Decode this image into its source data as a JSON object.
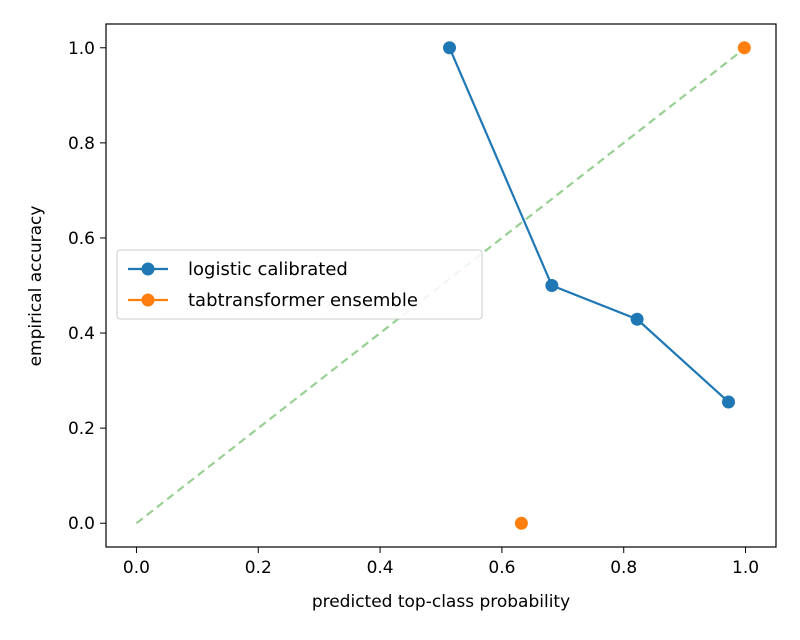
{
  "chart_data": {
    "type": "line",
    "xlabel": "predicted top-class probability",
    "ylabel": "empirical accuracy",
    "xlim": [
      -0.05,
      1.05
    ],
    "ylim": [
      -0.05,
      1.05
    ],
    "x_ticks": [
      "0.0",
      "0.2",
      "0.4",
      "0.6",
      "0.8",
      "1.0"
    ],
    "y_ticks": [
      "0.0",
      "0.2",
      "0.4",
      "0.6",
      "0.8",
      "1.0"
    ],
    "legend_position": "center-left",
    "grid": false,
    "reference_line": {
      "x": [
        0.0,
        1.0
      ],
      "y": [
        0.0,
        1.0
      ],
      "style": "dashed",
      "color": "#98d094"
    },
    "series": [
      {
        "name": "logistic calibrated",
        "color": "#1f77b4",
        "style": "line-markers",
        "x": [
          0.514,
          0.682,
          0.822,
          0.972
        ],
        "y": [
          1.0,
          0.5,
          0.429,
          0.255
        ]
      },
      {
        "name": "tabtransformer ensemble",
        "color": "#ff7f0e",
        "style": "markers",
        "x": [
          0.632,
          0.998
        ],
        "y": [
          0.0,
          1.0
        ]
      }
    ]
  }
}
